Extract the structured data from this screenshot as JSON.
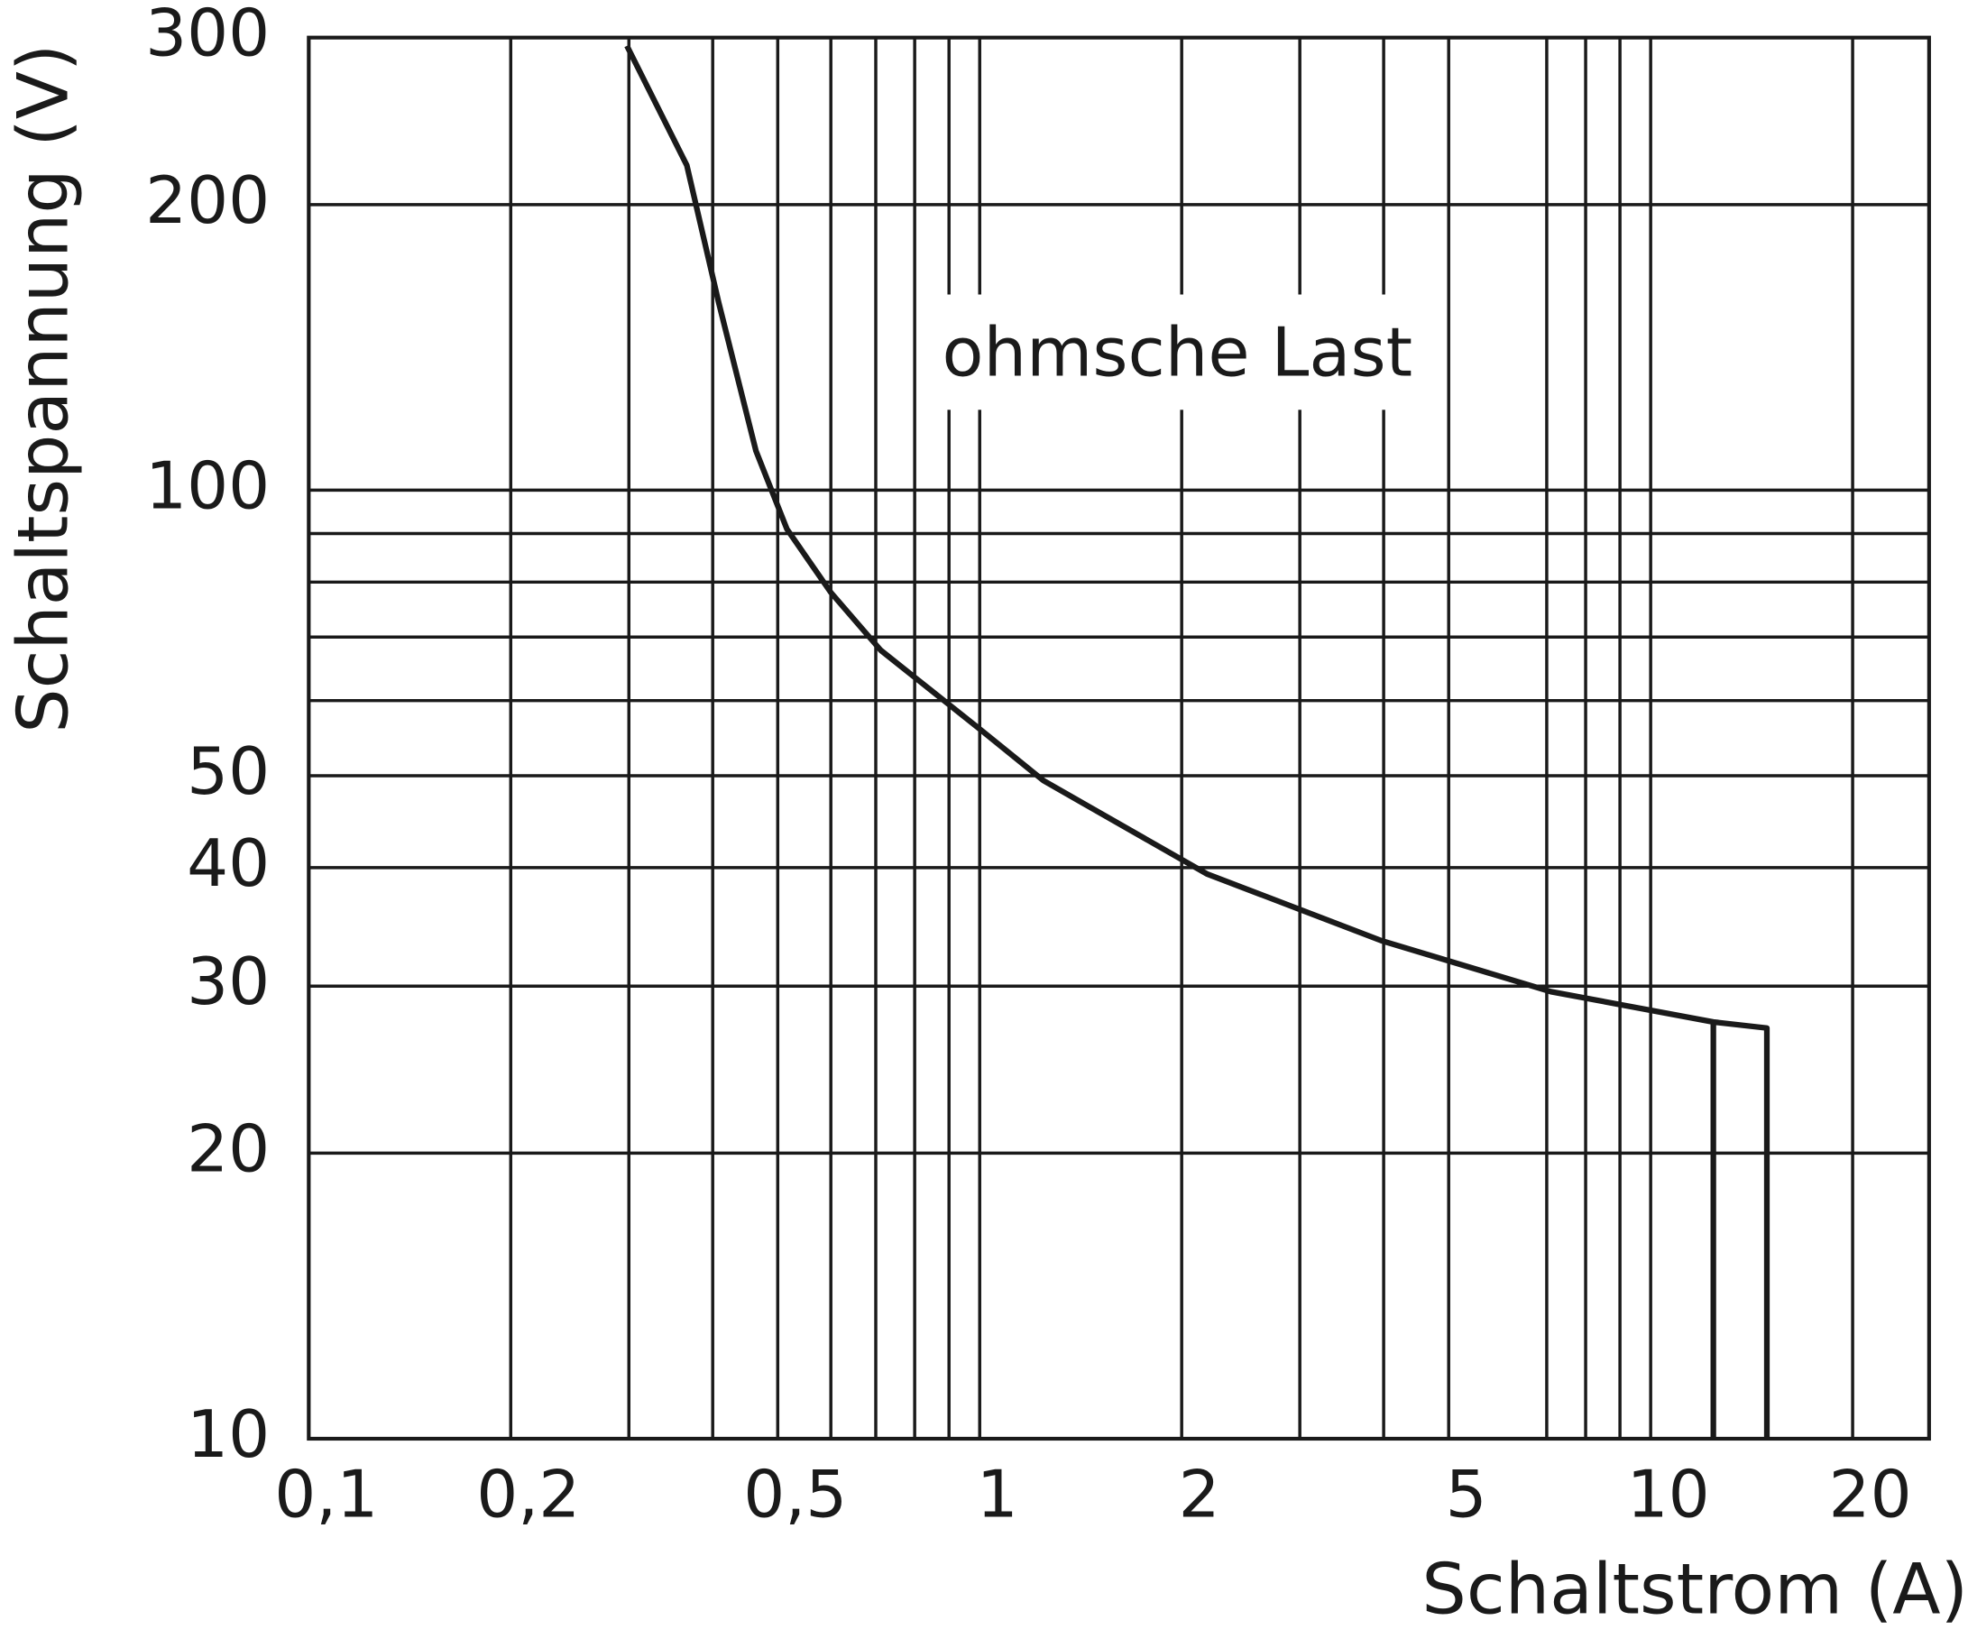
{
  "chart_data": {
    "type": "line",
    "x_label": "Schaltstrom (A)",
    "y_label": "Schaltspannung (V)",
    "annotation": "ohmsche Last",
    "xscale": "log",
    "yscale": "log",
    "grid": true,
    "xlim": [
      0.1,
      26
    ],
    "ylim": [
      10,
      300
    ],
    "xticks": [
      {
        "value": 0.1,
        "label": "0,1"
      },
      {
        "value": 0.2,
        "label": "0,2"
      },
      {
        "value": 0.5,
        "label": "0,5"
      },
      1,
      2,
      5,
      10,
      20
    ],
    "x_minor_grid": [
      0.3,
      0.4,
      0.6,
      0.7,
      0.8,
      0.9,
      3,
      4,
      7,
      8,
      9
    ],
    "yticks": [
      10,
      20,
      30,
      40,
      50,
      100,
      200,
      300
    ],
    "y_minor_grid": [
      60,
      70,
      80,
      90
    ],
    "series": [
      {
        "color": "#1a1a1a",
        "x": [
          0.298,
          0.366,
          0.408,
          0.464,
          0.516,
          0.6,
          0.712,
          1,
          1.245,
          2.18,
          3.97,
          7.1,
          12.4,
          14.9,
          14.9,
          12.4,
          12.4,
          12.4
        ],
        "values": [
          294,
          220,
          158,
          110,
          91,
          78,
          67.8,
          56,
          49.4,
          39.4,
          33.5,
          29.6,
          27.5,
          27.1,
          10,
          null,
          27.5,
          10
        ]
      }
    ]
  }
}
